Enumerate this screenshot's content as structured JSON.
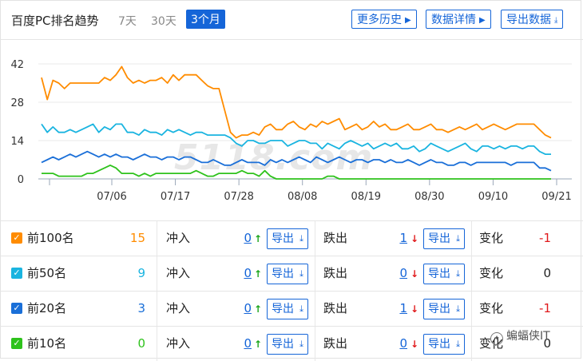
{
  "header": {
    "title": "百度PC排名趋势",
    "ranges": [
      "7天",
      "30天",
      "3个月"
    ],
    "active_range": "3个月",
    "buttons": {
      "history": "更多历史",
      "details": "数据详情",
      "export": "导出数据"
    }
  },
  "colors": {
    "accent": "#1565d8",
    "top100": "#ff8c00",
    "top50": "#1ab4e0",
    "top20": "#1a6fd8",
    "top10": "#2ec21c",
    "up": "#1aa51a",
    "down": "#e0191b"
  },
  "watermark": "5118.com",
  "chart_data": {
    "type": "line",
    "ylim": [
      0,
      42
    ],
    "yticks": [
      0,
      14,
      28,
      42
    ],
    "xticks": [
      "07/06",
      "07/17",
      "07/28",
      "08/08",
      "08/19",
      "08/30",
      "09/10",
      "09/21"
    ],
    "grid": true,
    "series": [
      {
        "name": "前100名",
        "color": "#ff8c00",
        "values": [
          37,
          29,
          36,
          35,
          33,
          35,
          35,
          35,
          35,
          35,
          35,
          37,
          36,
          38,
          41,
          37,
          35,
          36,
          35,
          36,
          36,
          37,
          35,
          38,
          36,
          38,
          38,
          38,
          36,
          34,
          33,
          33,
          25,
          17,
          15,
          16,
          16,
          17,
          16,
          19,
          20,
          18,
          18,
          20,
          21,
          19,
          18,
          20,
          19,
          21,
          20,
          21,
          22,
          18,
          19,
          20,
          18,
          19,
          21,
          19,
          20,
          18,
          18,
          19,
          20,
          18,
          18,
          19,
          20,
          18,
          18,
          17,
          18,
          19,
          18,
          19,
          20,
          18,
          19,
          20,
          19,
          18,
          19,
          20,
          20,
          20,
          20,
          18,
          16,
          15
        ]
      },
      {
        "series_key": "top50",
        "color": "#1ab4e0",
        "values": [
          20,
          17,
          19,
          17,
          17,
          18,
          17,
          18,
          19,
          20,
          17,
          19,
          18,
          20,
          20,
          17,
          17,
          16,
          18,
          17,
          17,
          16,
          18,
          17,
          18,
          17,
          16,
          17,
          17,
          16,
          16,
          16,
          16,
          15,
          13,
          12,
          14,
          14,
          13,
          13,
          14,
          14,
          14,
          12,
          13,
          14,
          14,
          13,
          13,
          11,
          13,
          12,
          11,
          13,
          14,
          13,
          12,
          13,
          11,
          12,
          13,
          12,
          13,
          11,
          11,
          12,
          10,
          11,
          13,
          12,
          11,
          10,
          11,
          12,
          13,
          11,
          10,
          12,
          12,
          11,
          12,
          11,
          12,
          12,
          11,
          12,
          12,
          10,
          9,
          9
        ]
      },
      {
        "series_key": "top20",
        "color": "#1a6fd8",
        "values": [
          6,
          7,
          8,
          7,
          8,
          9,
          8,
          9,
          10,
          9,
          8,
          9,
          8,
          9,
          8,
          8,
          7,
          8,
          9,
          8,
          8,
          7,
          8,
          8,
          7,
          8,
          8,
          7,
          6,
          6,
          7,
          6,
          5,
          5,
          6,
          7,
          6,
          6,
          6,
          5,
          7,
          6,
          7,
          6,
          7,
          8,
          7,
          6,
          8,
          7,
          6,
          7,
          8,
          7,
          6,
          7,
          7,
          6,
          7,
          7,
          6,
          7,
          6,
          6,
          7,
          6,
          5,
          6,
          7,
          6,
          6,
          5,
          5,
          6,
          6,
          5,
          6,
          6,
          6,
          6,
          6,
          6,
          5,
          6,
          6,
          6,
          6,
          4,
          4,
          3
        ]
      },
      {
        "series_key": "top10",
        "color": "#2ec21c",
        "values": [
          2,
          2,
          2,
          1,
          1,
          1,
          1,
          1,
          2,
          2,
          3,
          4,
          5,
          4,
          2,
          2,
          2,
          1,
          2,
          1,
          2,
          2,
          2,
          2,
          2,
          2,
          2,
          3,
          2,
          1,
          1,
          2,
          2,
          2,
          2,
          3,
          2,
          2,
          1,
          3,
          1,
          0,
          0,
          0,
          0,
          0,
          0,
          0,
          0,
          0,
          1,
          1,
          0,
          0,
          0,
          0,
          0,
          0,
          0,
          0,
          0,
          0,
          0,
          0,
          0,
          0,
          0,
          0,
          0,
          0,
          0,
          0,
          0,
          0,
          0,
          0,
          0,
          0,
          0,
          0,
          0,
          0,
          0,
          0,
          0,
          0,
          0,
          0,
          0,
          0
        ]
      }
    ]
  },
  "rows": [
    {
      "key": "top100",
      "label": "前100名",
      "count": "15",
      "in_label": "冲入",
      "in_num": "0",
      "out_label": "跌出",
      "out_num": "1",
      "export_label": "导出",
      "chg_label": "变化",
      "chg_num": "-1",
      "chg_color": "#e0191b",
      "count_color": "#ff8c00"
    },
    {
      "key": "top50",
      "label": "前50名",
      "count": "9",
      "in_label": "冲入",
      "in_num": "0",
      "out_label": "跌出",
      "out_num": "0",
      "export_label": "导出",
      "chg_label": "变化",
      "chg_num": "0",
      "chg_color": "#222222",
      "count_color": "#1ab4e0"
    },
    {
      "key": "top20",
      "label": "前20名",
      "count": "3",
      "in_label": "冲入",
      "in_num": "0",
      "out_label": "跌出",
      "out_num": "1",
      "export_label": "导出",
      "chg_label": "变化",
      "chg_num": "-1",
      "chg_color": "#e0191b",
      "count_color": "#1a6fd8"
    },
    {
      "key": "top10",
      "label": "前10名",
      "count": "0",
      "in_label": "冲入",
      "in_num": "0",
      "out_label": "跌出",
      "out_num": "0",
      "export_label": "导出",
      "chg_label": "变化",
      "chg_num": "0",
      "chg_color": "#222222",
      "count_color": "#2ec21c"
    }
  ],
  "social": "蝙蝠侠IT"
}
